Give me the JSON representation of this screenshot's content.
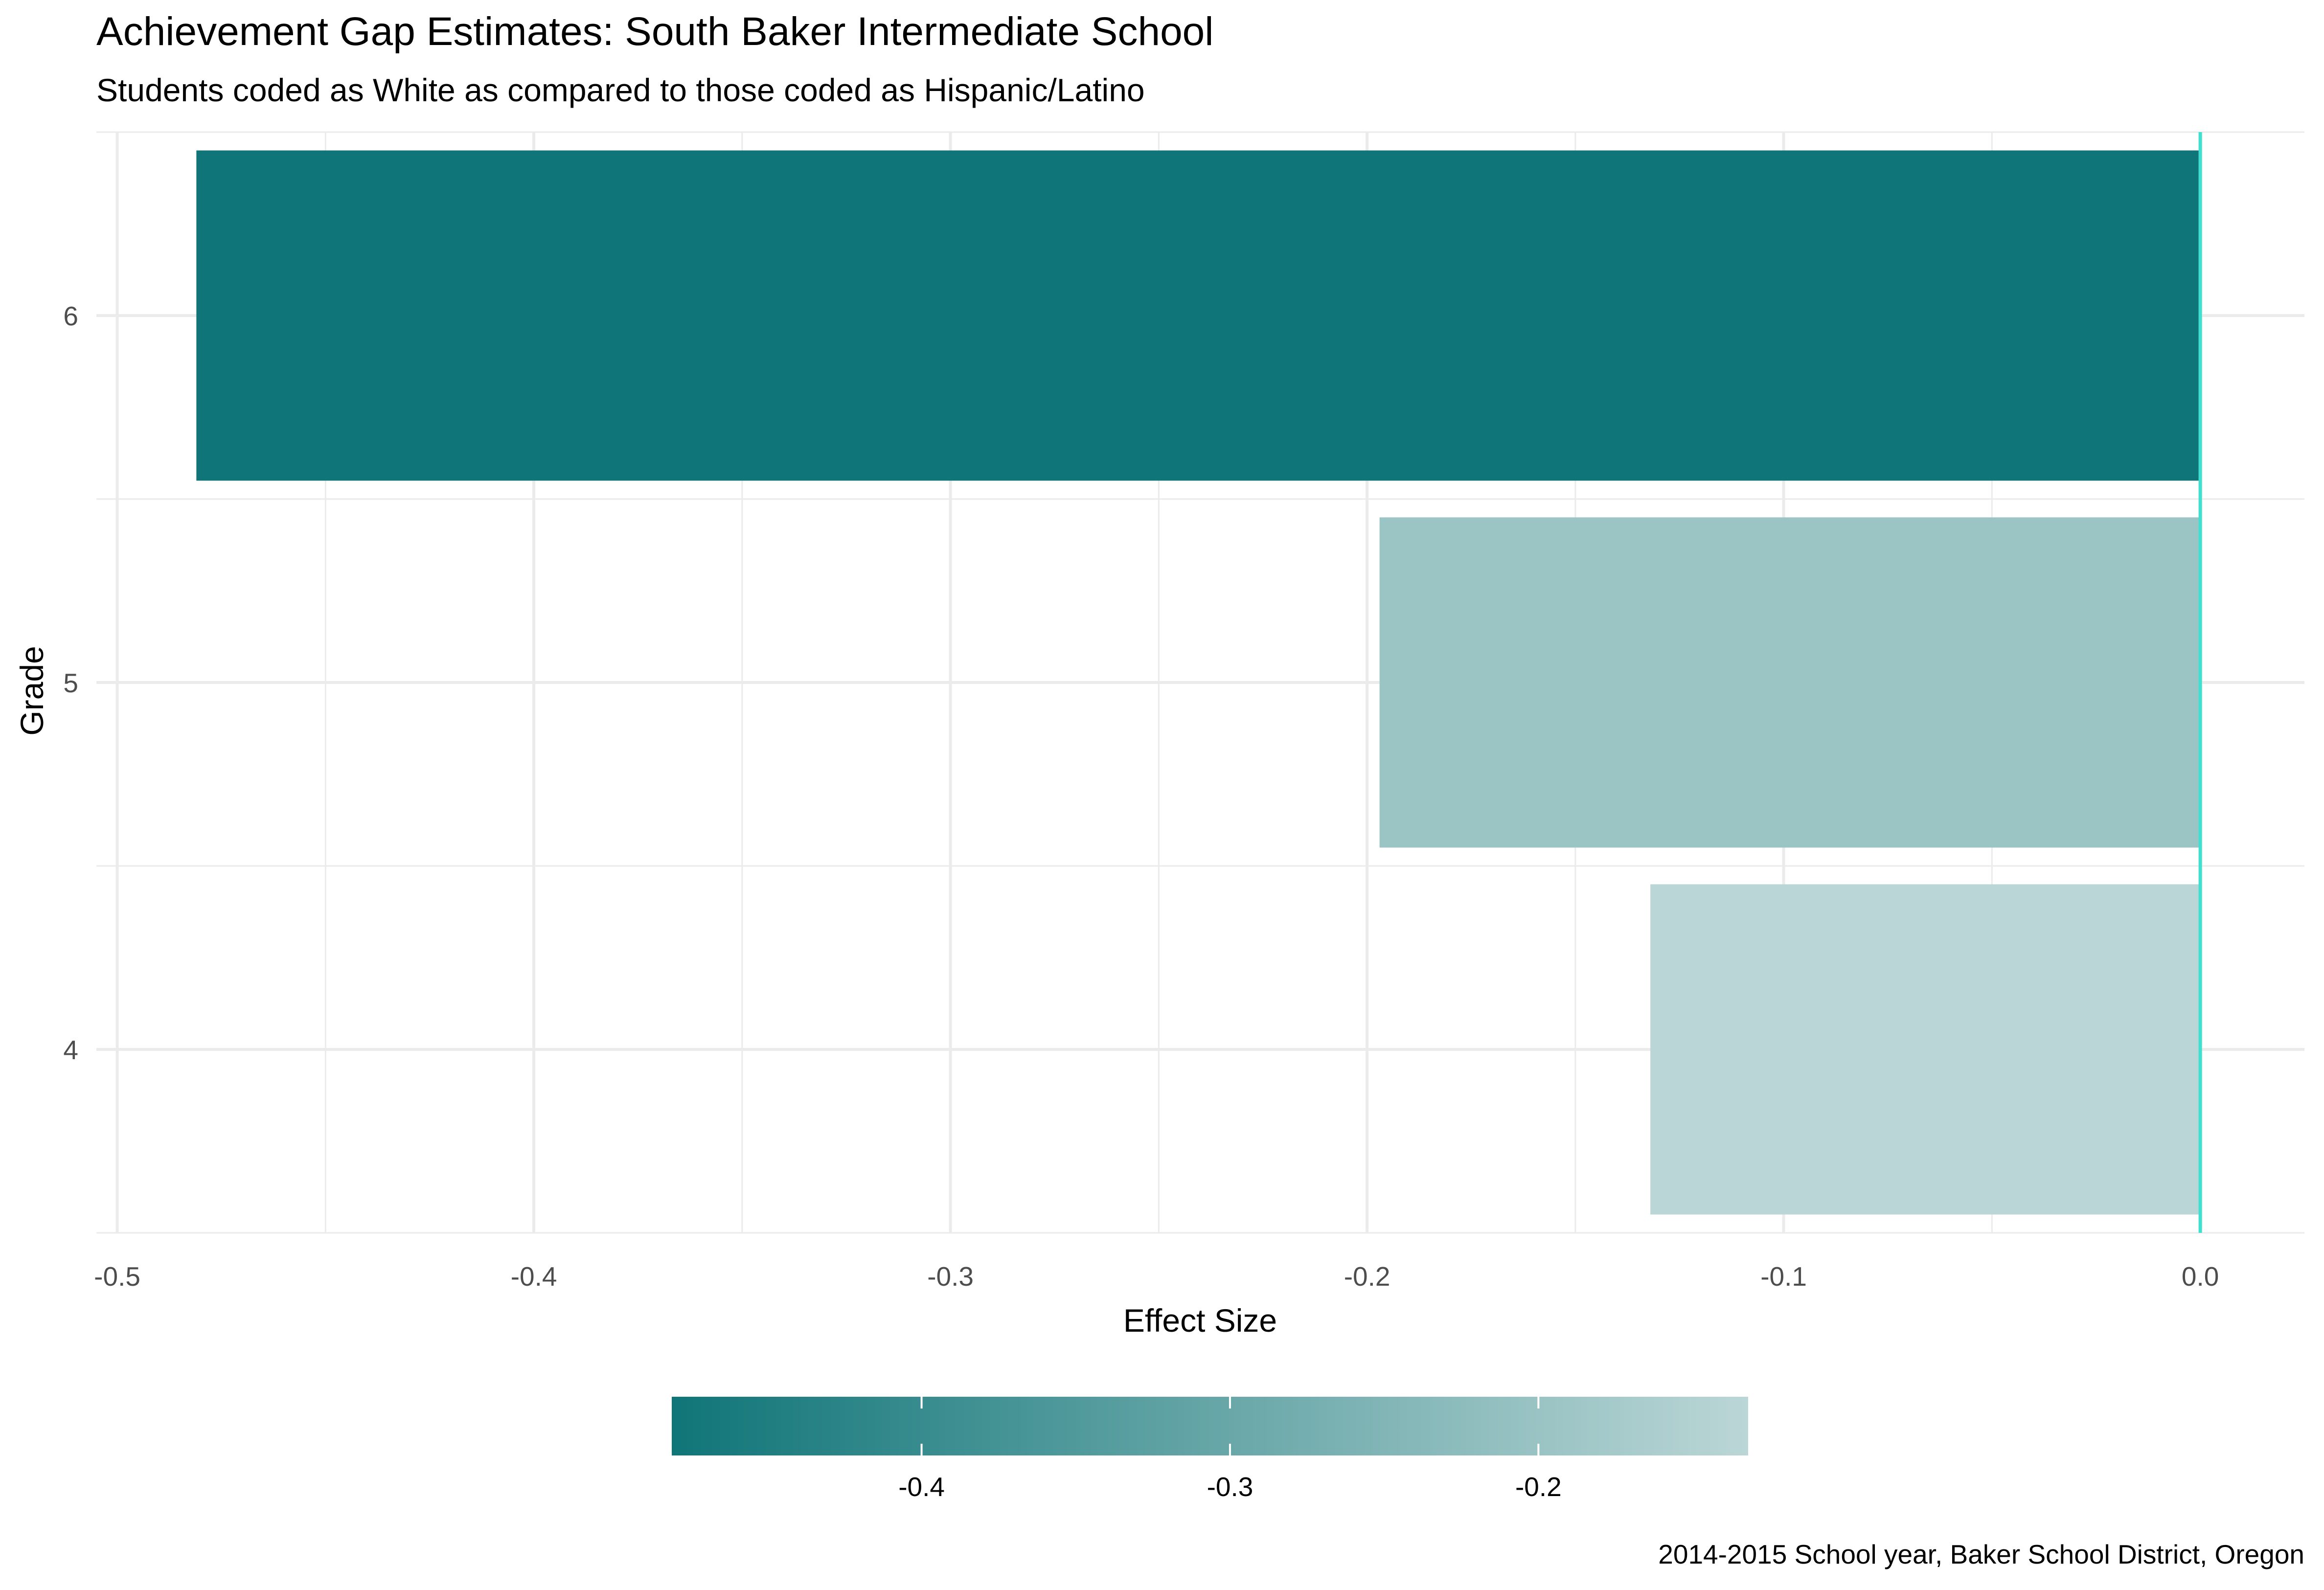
{
  "chart_data": {
    "type": "bar",
    "orientation": "horizontal",
    "title": "Achievement Gap Estimates: South Baker Intermediate School",
    "subtitle": "Students coded as White as compared to those coded as Hispanic/Latino",
    "caption": "2014-2015 School year, Baker School District, Oregon",
    "xlabel": "Effect Size",
    "ylabel": "Grade",
    "categories": [
      "4",
      "5",
      "6"
    ],
    "values": [
      -0.132,
      -0.197,
      -0.481
    ],
    "xlim": [
      -0.505,
      0.025
    ],
    "x_ticks": [
      -0.5,
      -0.4,
      -0.3,
      -0.2,
      -0.1,
      0.0
    ],
    "x_tick_labels": [
      "-0.5",
      "-0.4",
      "-0.3",
      "-0.2",
      "-0.1",
      "0.0"
    ],
    "reference_line": {
      "x": 0.0,
      "color": "#40e0d0"
    },
    "grid": true,
    "color_scale": {
      "low_value": -0.481,
      "high_value": -0.132,
      "low_color": "#107578",
      "high_color": "#bbd6d6",
      "ticks": [
        -0.4,
        -0.3,
        -0.2
      ],
      "tick_labels": [
        "-0.4",
        "-0.3",
        "-0.2"
      ]
    },
    "legend_position": "bottom"
  }
}
